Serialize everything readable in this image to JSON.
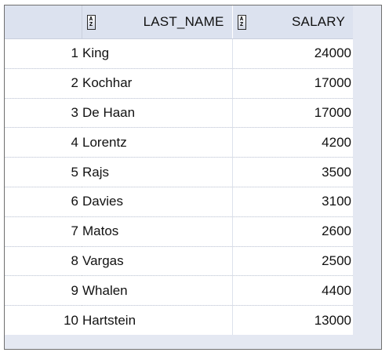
{
  "grid": {
    "columns": [
      {
        "label": "",
        "sort_icon": false
      },
      {
        "label": "LAST_NAME",
        "sort_icon": true
      },
      {
        "label": "SALARY",
        "sort_icon": true
      }
    ],
    "sort_icon_glyph": {
      "top": "A",
      "bottom": "Z"
    },
    "rows": [
      {
        "rownum": "1",
        "last_name": "King",
        "salary": "24000"
      },
      {
        "rownum": "2",
        "last_name": "Kochhar",
        "salary": "17000"
      },
      {
        "rownum": "3",
        "last_name": "De Haan",
        "salary": "17000"
      },
      {
        "rownum": "4",
        "last_name": "Lorentz",
        "salary": "4200"
      },
      {
        "rownum": "5",
        "last_name": "Rajs",
        "salary": "3500"
      },
      {
        "rownum": "6",
        "last_name": "Davies",
        "salary": "3100"
      },
      {
        "rownum": "7",
        "last_name": "Matos",
        "salary": "2600"
      },
      {
        "rownum": "8",
        "last_name": "Vargas",
        "salary": "2500"
      },
      {
        "rownum": "9",
        "last_name": "Whalen",
        "salary": "4400"
      },
      {
        "rownum": "10",
        "last_name": "Hartstein",
        "salary": "13000"
      }
    ]
  },
  "colors": {
    "header_bg": "#dce2ef",
    "frame_bg": "#e4e8f2",
    "border": "#6f6f6f"
  }
}
